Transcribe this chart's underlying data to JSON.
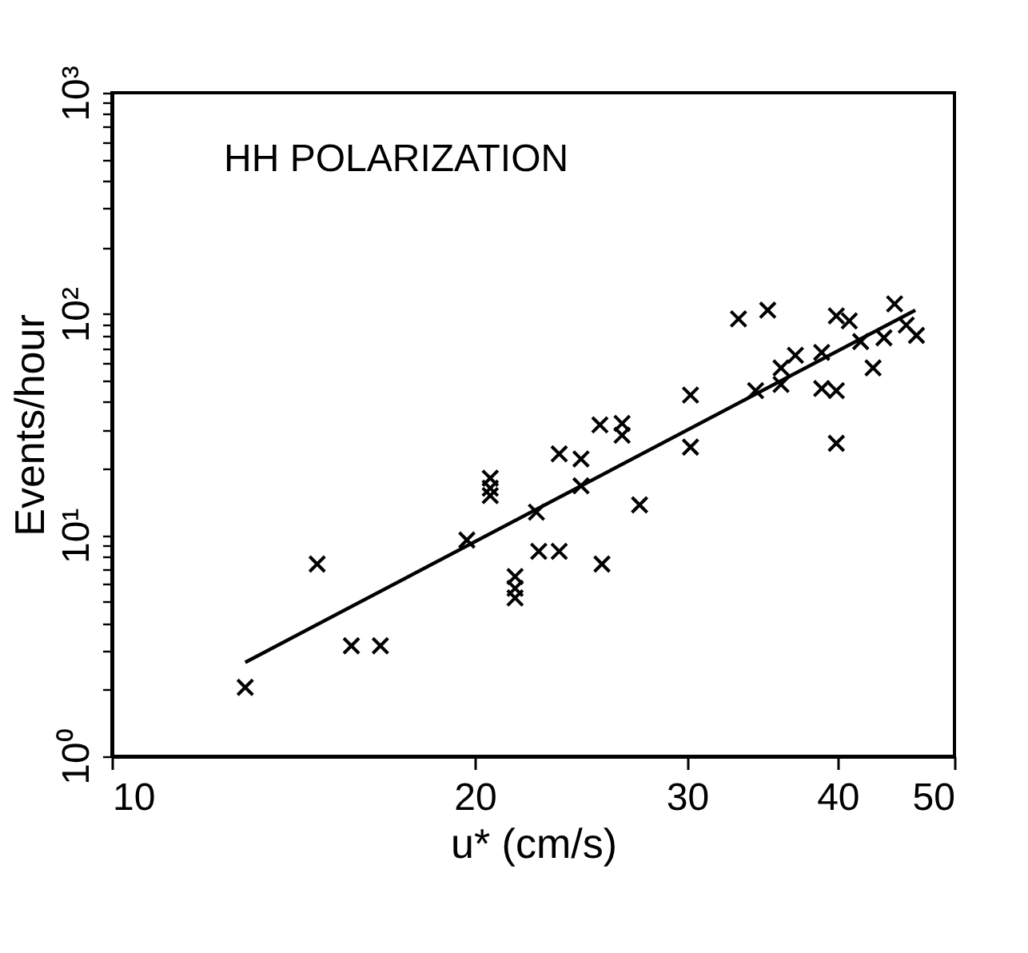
{
  "chart_data": {
    "type": "scatter",
    "xlabel": "u* (cm/s)",
    "ylabel": "Events/hour",
    "annotations": [
      "HH  POLARIZATION"
    ],
    "log": "xy",
    "grid": false,
    "marker": "cross",
    "xlim": [
      10,
      50
    ],
    "xticks": [
      10,
      20,
      30,
      40,
      50
    ],
    "ylim": [
      1,
      1000
    ],
    "yticks": [
      {
        "value": 1,
        "label": "10⁰"
      },
      {
        "value": 2,
        "label": null
      },
      {
        "value": 3,
        "label": null
      },
      {
        "value": 4,
        "label": null
      },
      {
        "value": 5,
        "label": null
      },
      {
        "value": 6,
        "label": null
      },
      {
        "value": 7,
        "label": null
      },
      {
        "value": 8,
        "label": null
      },
      {
        "value": 9,
        "label": null
      },
      {
        "value": 10,
        "label": "10¹"
      },
      {
        "value": 20,
        "label": null
      },
      {
        "value": 30,
        "label": null
      },
      {
        "value": 40,
        "label": null
      },
      {
        "value": 50,
        "label": null
      },
      {
        "value": 60,
        "label": null
      },
      {
        "value": 70,
        "label": null
      },
      {
        "value": 80,
        "label": null
      },
      {
        "value": 90,
        "label": null
      },
      {
        "value": 100,
        "label": "10²"
      },
      {
        "value": 200,
        "label": null
      },
      {
        "value": 300,
        "label": null
      },
      {
        "value": 400,
        "label": null
      },
      {
        "value": 500,
        "label": null
      },
      {
        "value": 600,
        "label": null
      },
      {
        "value": 700,
        "label": null
      },
      {
        "value": 800,
        "label": null
      },
      {
        "value": 900,
        "label": null
      },
      {
        "value": 1000,
        "label": "10³"
      }
    ],
    "series": [
      {
        "color": "#000000",
        "x": [
          12.9,
          14.8,
          15.8,
          16.7,
          19.7,
          20.6,
          20.6,
          20.6,
          21.6,
          21.6,
          21.6,
          22.5,
          22.6,
          23.5,
          23.5,
          24.5,
          24.5,
          25.5,
          25.4,
          26.5,
          26.5,
          27.4,
          30.2,
          30.2,
          34.2,
          33.1,
          35.0,
          35.9,
          35.9,
          36.9,
          38.8,
          38.8,
          39.9,
          39.9,
          39.9,
          40.9,
          41.8,
          42.8,
          43.7,
          44.6,
          45.6,
          46.5
        ],
        "values": [
          2.05,
          7.4,
          3.16,
          3.16,
          9.5,
          18.1,
          16.3,
          15.1,
          6.5,
          5.75,
          5.2,
          12.7,
          8.45,
          8.45,
          23.3,
          22.1,
          16.7,
          7.4,
          31.5,
          32,
          28.3,
          13.7,
          43,
          25,
          45,
          95,
          104,
          57,
          48,
          65,
          67,
          46,
          45,
          26,
          98,
          93,
          75,
          57,
          78,
          111,
          89,
          80
        ]
      },
      {
        "type": "line",
        "marker": "none",
        "line_style": "solid",
        "color": "#000000",
        "x": [
          12.9,
          46.4
        ],
        "values": [
          2.66,
          104
        ]
      }
    ]
  }
}
